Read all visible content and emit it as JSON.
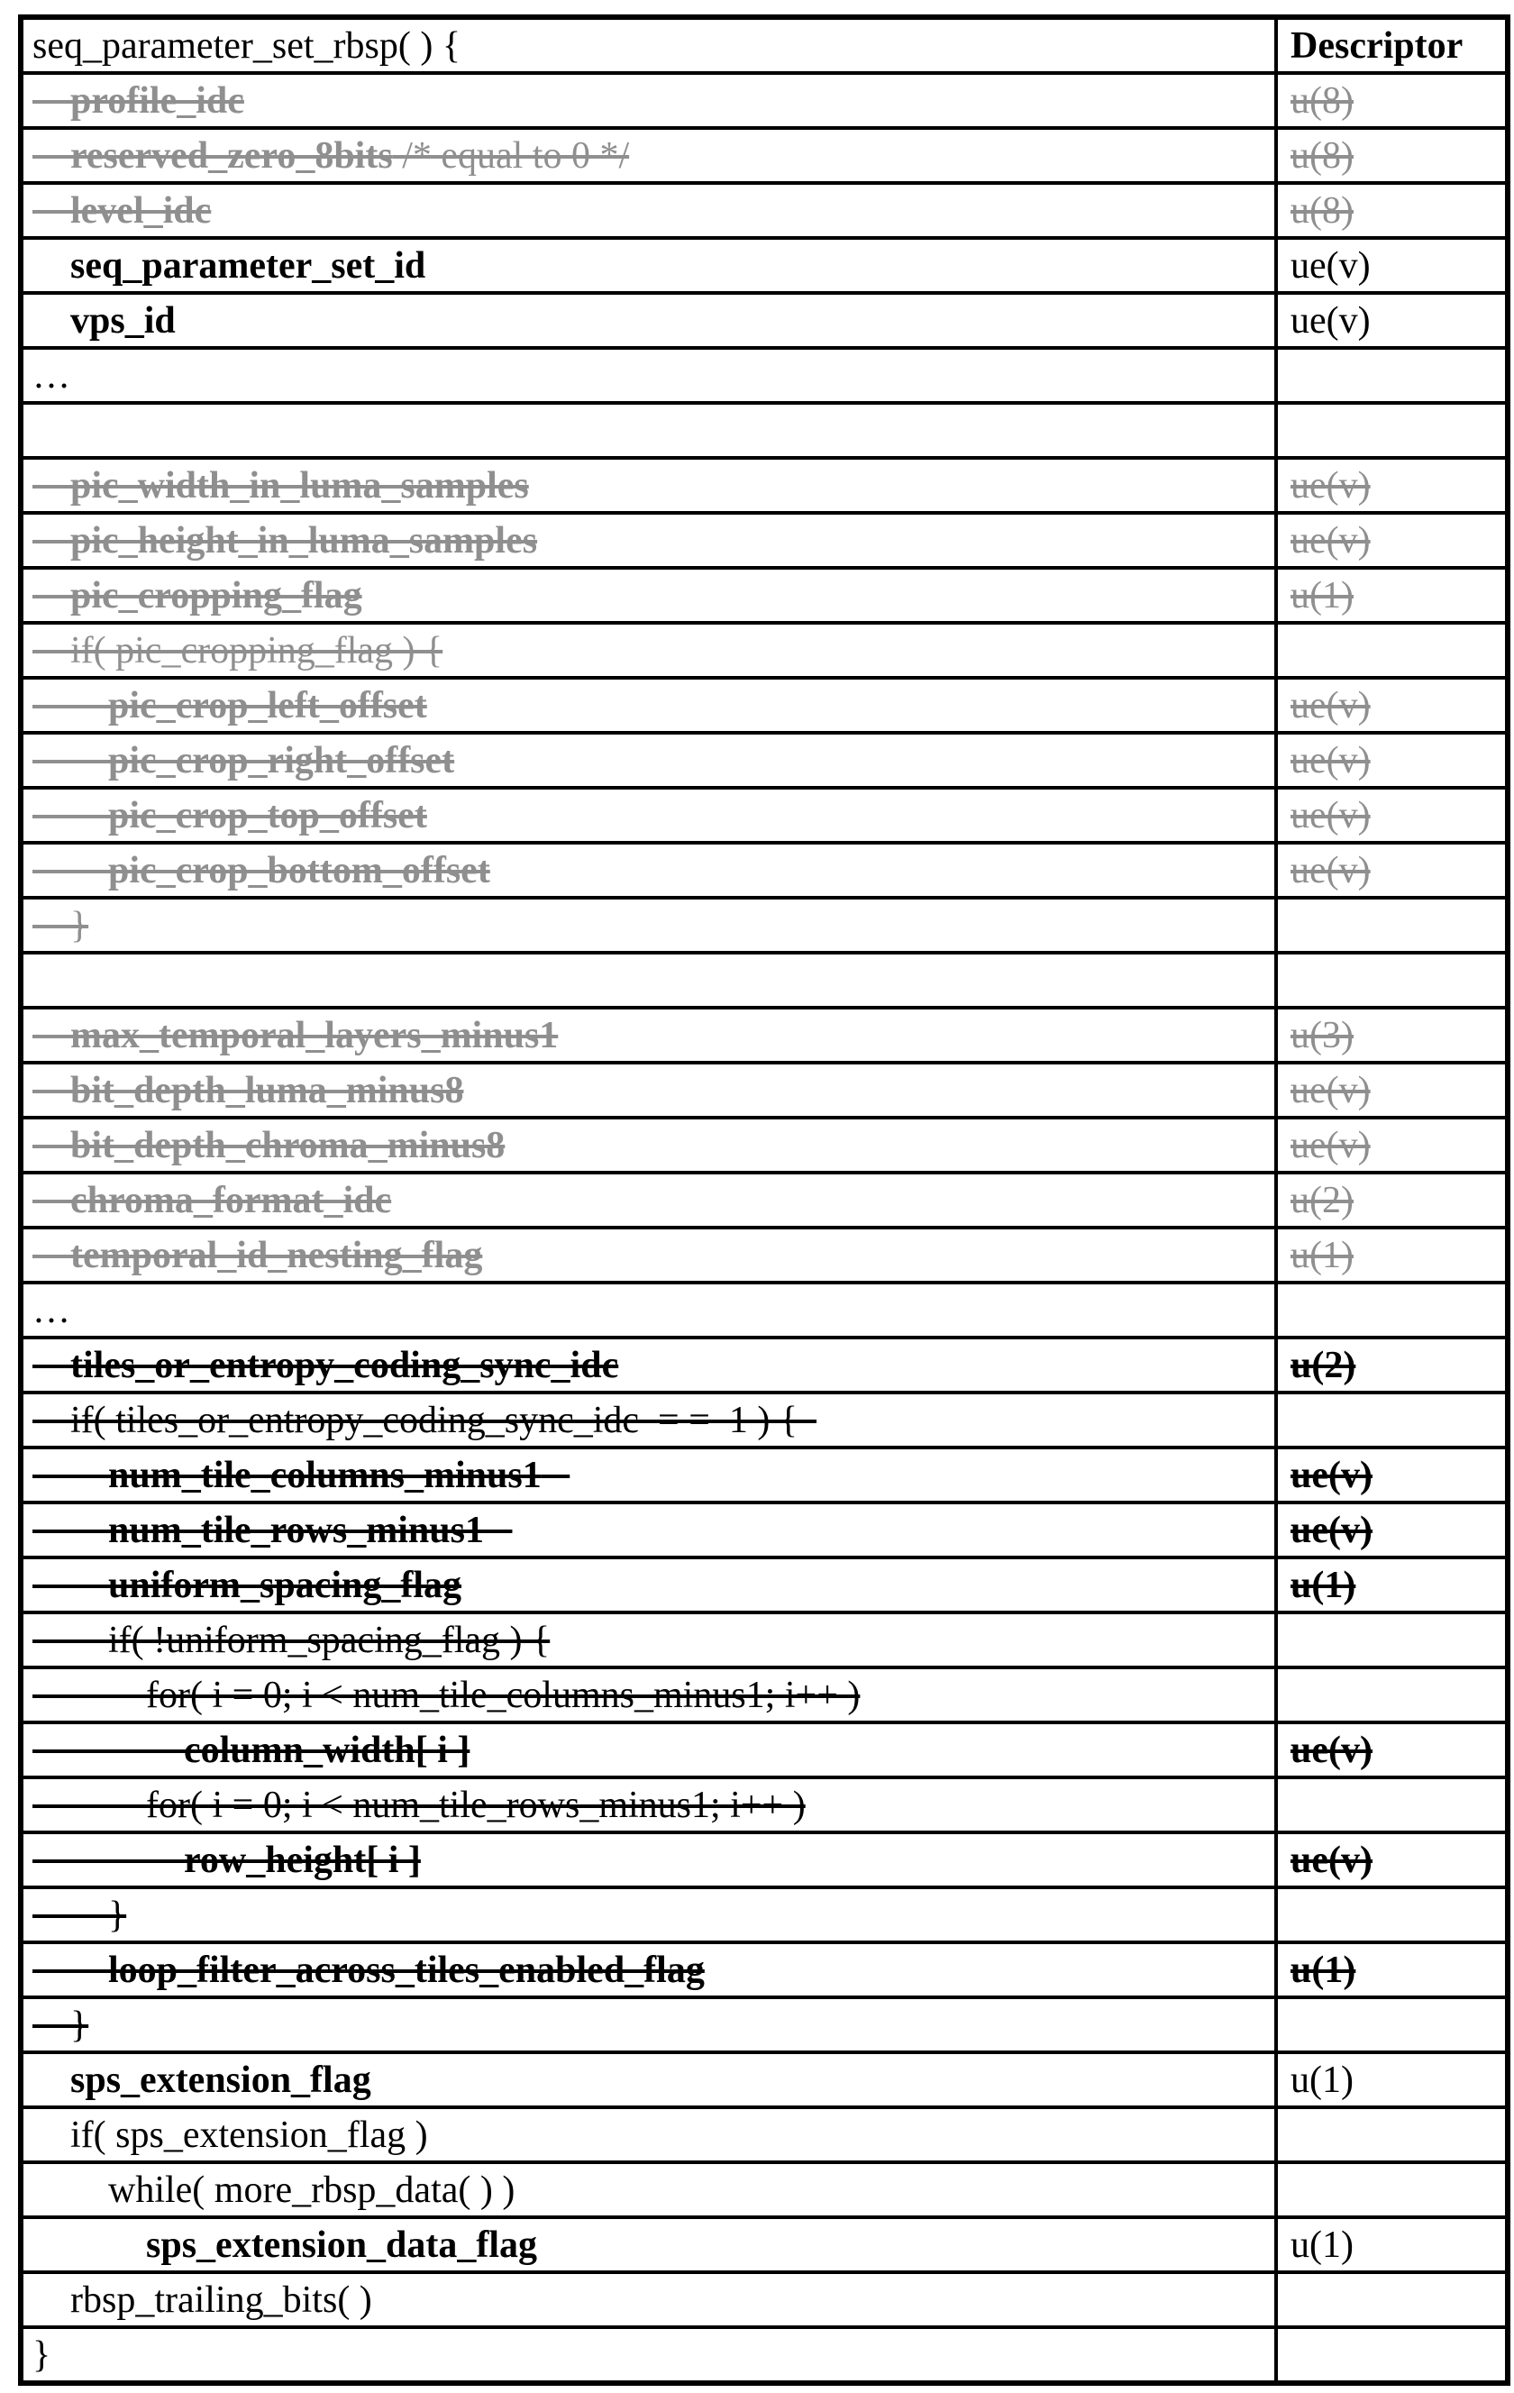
{
  "table": {
    "title_row": "seq_parameter_set_rbsp( ) {",
    "descriptor_header": "Descriptor",
    "colors": {
      "deleted_gray": "#8f8f8f",
      "text_black": "#000000",
      "border": "#000000",
      "background": "#ffffff"
    },
    "rows": [
      {
        "syntax": [
          {
            "text": "seq_parameter_set_rbsp( ) {",
            "bold": false
          }
        ],
        "indent": 0,
        "strike": false,
        "gray": false,
        "desc": {
          "text": "Descriptor",
          "bold": true,
          "strike": false,
          "gray": false
        }
      },
      {
        "syntax": [
          {
            "text": "profile_idc",
            "bold": true
          }
        ],
        "indent": 1,
        "strike": true,
        "gray": true,
        "desc": {
          "text": "u(8)",
          "bold": false,
          "strike": true,
          "gray": true
        }
      },
      {
        "syntax": [
          {
            "text": "reserved_zero_8bits",
            "bold": true
          },
          {
            "text": " /* equal to 0 */",
            "bold": false
          }
        ],
        "indent": 1,
        "strike": true,
        "gray": true,
        "desc": {
          "text": "u(8)",
          "bold": false,
          "strike": true,
          "gray": true
        }
      },
      {
        "syntax": [
          {
            "text": "level_idc",
            "bold": true
          }
        ],
        "indent": 1,
        "strike": true,
        "gray": true,
        "desc": {
          "text": "u(8)",
          "bold": false,
          "strike": true,
          "gray": true
        }
      },
      {
        "syntax": [
          {
            "text": "seq_parameter_set_id",
            "bold": true
          }
        ],
        "indent": 1,
        "strike": false,
        "gray": false,
        "desc": {
          "text": "ue(v)",
          "bold": false,
          "strike": false,
          "gray": false
        }
      },
      {
        "syntax": [
          {
            "text": "vps_id",
            "bold": true
          }
        ],
        "indent": 1,
        "strike": false,
        "gray": false,
        "desc": {
          "text": "ue(v)",
          "bold": false,
          "strike": false,
          "gray": false
        }
      },
      {
        "syntax": [
          {
            "text": "…",
            "bold": false
          }
        ],
        "indent": 0,
        "strike": false,
        "gray": false,
        "desc": null
      },
      {
        "syntax": [],
        "indent": 0,
        "strike": false,
        "gray": false,
        "desc": null
      },
      {
        "syntax": [
          {
            "text": "pic_width_in_luma_samples",
            "bold": true
          }
        ],
        "indent": 1,
        "strike": true,
        "gray": true,
        "desc": {
          "text": "ue(v)",
          "bold": false,
          "strike": true,
          "gray": true
        }
      },
      {
        "syntax": [
          {
            "text": "pic_height_in_luma_samples",
            "bold": true
          }
        ],
        "indent": 1,
        "strike": true,
        "gray": true,
        "desc": {
          "text": "ue(v)",
          "bold": false,
          "strike": true,
          "gray": true
        }
      },
      {
        "syntax": [
          {
            "text": "pic_cropping_flag",
            "bold": true
          }
        ],
        "indent": 1,
        "strike": true,
        "gray": true,
        "desc": {
          "text": "u(1)",
          "bold": false,
          "strike": true,
          "gray": true
        }
      },
      {
        "syntax": [
          {
            "text": "if( pic_cropping_flag ) {",
            "bold": false
          }
        ],
        "indent": 1,
        "strike": true,
        "gray": true,
        "desc": null
      },
      {
        "syntax": [
          {
            "text": "pic_crop_left_offset",
            "bold": true
          }
        ],
        "indent": 2,
        "strike": true,
        "gray": true,
        "desc": {
          "text": "ue(v)",
          "bold": false,
          "strike": true,
          "gray": true
        }
      },
      {
        "syntax": [
          {
            "text": "pic_crop_right_offset",
            "bold": true
          }
        ],
        "indent": 2,
        "strike": true,
        "gray": true,
        "desc": {
          "text": "ue(v)",
          "bold": false,
          "strike": true,
          "gray": true
        }
      },
      {
        "syntax": [
          {
            "text": "pic_crop_top_offset",
            "bold": true
          }
        ],
        "indent": 2,
        "strike": true,
        "gray": true,
        "desc": {
          "text": "ue(v)",
          "bold": false,
          "strike": true,
          "gray": true
        }
      },
      {
        "syntax": [
          {
            "text": "pic_crop_bottom_offset",
            "bold": true
          }
        ],
        "indent": 2,
        "strike": true,
        "gray": true,
        "desc": {
          "text": "ue(v)",
          "bold": false,
          "strike": true,
          "gray": true
        }
      },
      {
        "syntax": [
          {
            "text": "}",
            "bold": false
          }
        ],
        "indent": 1,
        "strike": true,
        "gray": true,
        "desc": null
      },
      {
        "syntax": [],
        "indent": 0,
        "strike": false,
        "gray": false,
        "desc": null
      },
      {
        "syntax": [
          {
            "text": "max_temporal_layers_minus1",
            "bold": true
          }
        ],
        "indent": 1,
        "strike": true,
        "gray": true,
        "desc": {
          "text": "u(3)",
          "bold": false,
          "strike": true,
          "gray": true
        }
      },
      {
        "syntax": [
          {
            "text": "bit_depth_luma_minus8",
            "bold": true
          }
        ],
        "indent": 1,
        "strike": true,
        "gray": true,
        "desc": {
          "text": "ue(v)",
          "bold": false,
          "strike": true,
          "gray": true
        }
      },
      {
        "syntax": [
          {
            "text": "bit_depth_chroma_minus8",
            "bold": true
          }
        ],
        "indent": 1,
        "strike": true,
        "gray": true,
        "desc": {
          "text": "ue(v)",
          "bold": false,
          "strike": true,
          "gray": true
        }
      },
      {
        "syntax": [
          {
            "text": "chroma_format_idc",
            "bold": true
          }
        ],
        "indent": 1,
        "strike": true,
        "gray": true,
        "desc": {
          "text": "u(2)",
          "bold": false,
          "strike": true,
          "gray": true
        }
      },
      {
        "syntax": [
          {
            "text": "temporal_id_nesting_flag",
            "bold": true
          }
        ],
        "indent": 1,
        "strike": true,
        "gray": true,
        "desc": {
          "text": "u(1)",
          "bold": false,
          "strike": true,
          "gray": true
        }
      },
      {
        "syntax": [
          {
            "text": "…",
            "bold": false
          }
        ],
        "indent": 0,
        "strike": false,
        "gray": false,
        "desc": null
      },
      {
        "syntax": [
          {
            "text": "tiles_or_entropy_coding_sync_idc",
            "bold": true
          }
        ],
        "indent": 1,
        "strike": true,
        "gray": false,
        "desc": {
          "text": "u(2)",
          "bold": true,
          "strike": true,
          "gray": false
        }
      },
      {
        "syntax": [
          {
            "text": "if( tiles_or_entropy_coding_sync_idc  = =  1 ) {",
            "bold": false
          }
        ],
        "indent": 1,
        "strike": true,
        "gray": false,
        "tail": 2,
        "desc": null
      },
      {
        "syntax": [
          {
            "text": "num_tile_columns_minus1",
            "bold": true
          }
        ],
        "indent": 2,
        "strike": true,
        "gray": false,
        "tail": 3,
        "desc": {
          "text": "ue(v)",
          "bold": true,
          "strike": true,
          "gray": false
        }
      },
      {
        "syntax": [
          {
            "text": "num_tile_rows_minus1",
            "bold": true
          }
        ],
        "indent": 2,
        "strike": true,
        "gray": false,
        "tail": 3,
        "desc": {
          "text": "ue(v)",
          "bold": true,
          "strike": true,
          "gray": false
        }
      },
      {
        "syntax": [
          {
            "text": "uniform_spacing_flag",
            "bold": true
          }
        ],
        "indent": 2,
        "strike": true,
        "gray": false,
        "desc": {
          "text": "u(1)",
          "bold": true,
          "strike": true,
          "gray": false
        }
      },
      {
        "syntax": [
          {
            "text": "if( !uniform_spacing_flag ) {",
            "bold": false
          }
        ],
        "indent": 2,
        "strike": true,
        "gray": false,
        "desc": null
      },
      {
        "syntax": [
          {
            "text": "for( i = 0; i < num_tile_columns_minus1; i++ )",
            "bold": false
          }
        ],
        "indent": 3,
        "strike": true,
        "gray": false,
        "desc": null
      },
      {
        "syntax": [
          {
            "text": "column_width[ i ]",
            "bold": true
          }
        ],
        "indent": 4,
        "strike": true,
        "gray": false,
        "desc": {
          "text": "ue(v)",
          "bold": true,
          "strike": true,
          "gray": false
        }
      },
      {
        "syntax": [
          {
            "text": "for( i = 0; i < num_tile_rows_minus1; i++ )",
            "bold": false
          }
        ],
        "indent": 3,
        "strike": true,
        "gray": false,
        "desc": null
      },
      {
        "syntax": [
          {
            "text": "row_height[ i ]",
            "bold": true
          }
        ],
        "indent": 4,
        "strike": true,
        "gray": false,
        "desc": {
          "text": "ue(v)",
          "bold": true,
          "strike": true,
          "gray": false
        }
      },
      {
        "syntax": [
          {
            "text": "}",
            "bold": false
          }
        ],
        "indent": 2,
        "strike": true,
        "gray": false,
        "desc": null
      },
      {
        "syntax": [
          {
            "text": "loop_filter_across_tiles_enabled_flag",
            "bold": true
          }
        ],
        "indent": 2,
        "strike": true,
        "gray": false,
        "desc": {
          "text": "u(1)",
          "bold": true,
          "strike": true,
          "gray": false
        }
      },
      {
        "syntax": [
          {
            "text": "}",
            "bold": false
          }
        ],
        "indent": 1,
        "strike": true,
        "gray": false,
        "desc": null
      },
      {
        "syntax": [
          {
            "text": "sps_extension_flag",
            "bold": true
          }
        ],
        "indent": 1,
        "strike": false,
        "gray": false,
        "desc": {
          "text": "u(1)",
          "bold": false,
          "strike": false,
          "gray": false
        }
      },
      {
        "syntax": [
          {
            "text": "if( sps_extension_flag )",
            "bold": false
          }
        ],
        "indent": 1,
        "strike": false,
        "gray": false,
        "desc": null
      },
      {
        "syntax": [
          {
            "text": "while( more_rbsp_data( ) )",
            "bold": false
          }
        ],
        "indent": 2,
        "strike": false,
        "gray": false,
        "desc": null
      },
      {
        "syntax": [
          {
            "text": "sps_extension_data_flag",
            "bold": true
          }
        ],
        "indent": 3,
        "strike": false,
        "gray": false,
        "desc": {
          "text": "u(1)",
          "bold": false,
          "strike": false,
          "gray": false
        }
      },
      {
        "syntax": [
          {
            "text": "rbsp_trailing_bits( )",
            "bold": false
          }
        ],
        "indent": 1,
        "strike": false,
        "gray": false,
        "desc": null
      },
      {
        "syntax": [
          {
            "text": "}",
            "bold": false
          }
        ],
        "indent": 0,
        "strike": false,
        "gray": false,
        "desc": null
      }
    ]
  }
}
